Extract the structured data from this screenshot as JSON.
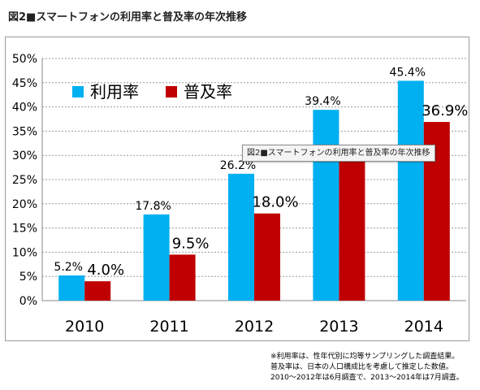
{
  "figure_title": "図2■スマートフォンの利用率と普及率の年次推移",
  "tooltip_text": "図2■スマートフォンの利用率と普及率の年次推移",
  "notes": [
    "※利用率は、性年代別に均等サンプリングした調査結果。",
    "普及率は、日本の人口構成比を考慮して推定した数値。",
    "2010～2012年は6月調査で、2013～2014年は7月調査。"
  ],
  "chart_data": {
    "type": "bar",
    "categories": [
      "2010",
      "2011",
      "2012",
      "2013",
      "2014"
    ],
    "series": [
      {
        "name": "利用率",
        "color": "#00b0f0",
        "values": [
          5.2,
          17.8,
          26.2,
          39.4,
          45.4
        ],
        "labels": [
          "5.2%",
          "17.8%",
          "26.2%",
          "39.4%",
          "45.4%"
        ]
      },
      {
        "name": "普及率",
        "color": "#c00000",
        "values": [
          4.0,
          9.5,
          18.0,
          29.3,
          36.9
        ],
        "labels": [
          "4.0%",
          "9.5%",
          "18.0%",
          "",
          "36.9%"
        ]
      }
    ],
    "yticks": [
      "0%",
      "5%",
      "10%",
      "15%",
      "20%",
      "25%",
      "30%",
      "35%",
      "40%",
      "45%",
      "50%"
    ],
    "ylim": [
      0,
      50
    ],
    "grid": true,
    "legend_position": "top-left"
  }
}
